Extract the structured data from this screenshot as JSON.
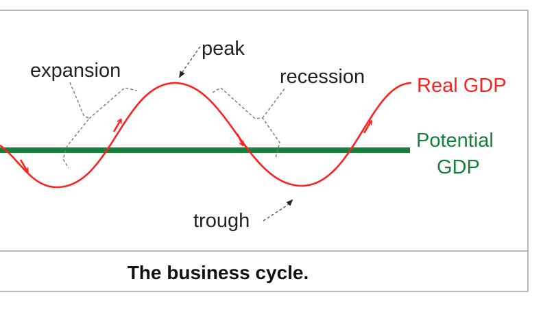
{
  "diagram": {
    "labels": {
      "expansion": "expansion",
      "peak": "peak",
      "recession": "recession",
      "trough": "trough"
    },
    "series": {
      "real_gdp": "Real GDP",
      "potential_gdp_line1": "Potential",
      "potential_gdp_line2": "GDP"
    },
    "caption": "The business cycle.",
    "colors": {
      "real_gdp": "#ff2020",
      "potential_gdp": "#17803a",
      "annotation_text": "#222222",
      "leader_lines": "#777777",
      "frame": "#a0a0a0"
    }
  }
}
